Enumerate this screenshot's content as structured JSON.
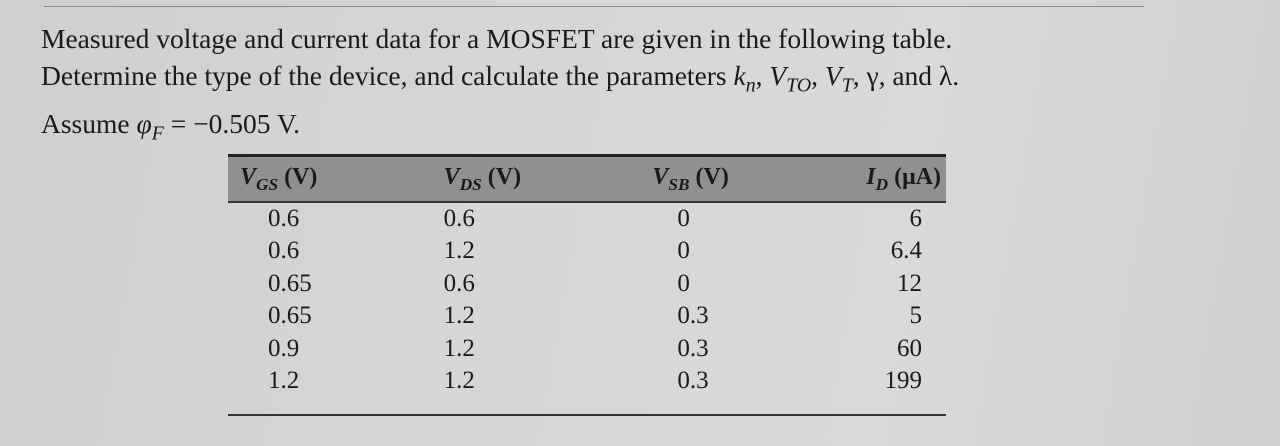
{
  "problem": {
    "line1": "Measured voltage and current data for a MOSFET are given in the following table.",
    "line2_pre": "Determine the type of the device, and calculate the parameters ",
    "k_sym": "k",
    "k_sub": "n",
    "sep1": ", ",
    "vto_sym": "V",
    "vto_sub": "TO",
    "sep2": ", ",
    "vt_sym": "V",
    "vt_sub": "T",
    "line2_post": ", γ, and λ.",
    "line3_pre": "Assume ",
    "phi_sym": "φ",
    "phi_sub": "F",
    "line3_post": " = −0.505 V."
  },
  "table": {
    "headers": [
      {
        "sym": "V",
        "sub": "GS",
        "unit": " (V)"
      },
      {
        "sym": "V",
        "sub": "DS",
        "unit": " (V)"
      },
      {
        "sym": "V",
        "sub": "SB",
        "unit": " (V)"
      },
      {
        "sym": "I",
        "sub": "D",
        "unit": " (μA)"
      }
    ],
    "rows": [
      [
        "0.6",
        "0.6",
        "0",
        "6"
      ],
      [
        "0.6",
        "1.2",
        "0",
        "6.4"
      ],
      [
        "0.65",
        "0.6",
        "0",
        "12"
      ],
      [
        "0.65",
        "1.2",
        "0.3",
        "5"
      ],
      [
        "0.9",
        "1.2",
        "0.3",
        "60"
      ],
      [
        "1.2",
        "1.2",
        "0.3",
        "199"
      ]
    ]
  }
}
